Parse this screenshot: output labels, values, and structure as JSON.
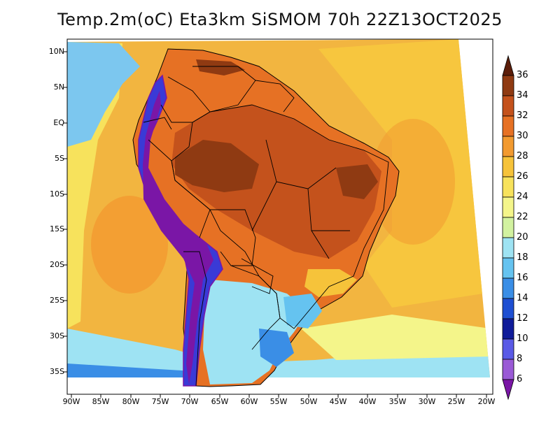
{
  "title": "Temp.2m(oC)  Eta3km  SiSMOM  70h  22Z13OCT2025",
  "map": {
    "lat_labels": [
      "10N",
      "5N",
      "EQ",
      "5S",
      "10S",
      "15S",
      "20S",
      "25S",
      "30S",
      "35S"
    ],
    "lon_labels": [
      "90W",
      "85W",
      "80W",
      "75W",
      "70W",
      "65W",
      "60W",
      "55W",
      "50W",
      "45W",
      "40W",
      "35W",
      "30W",
      "25W",
      "20W"
    ],
    "region": "South America"
  },
  "colorbar": {
    "labels": [
      "36",
      "34",
      "32",
      "30",
      "28",
      "26",
      "24",
      "22",
      "20",
      "18",
      "16",
      "14",
      "12",
      "10",
      "8",
      "6"
    ],
    "colors": [
      "#5c1e0a",
      "#8f3a12",
      "#c4521c",
      "#e67124",
      "#f29a30",
      "#f6c33a",
      "#f7e25c",
      "#f4f58a",
      "#d2f2a0",
      "#9ee3f3",
      "#65c3f0",
      "#3a8ee6",
      "#1e4fd2",
      "#101c9a",
      "#5a5ae6",
      "#9a5ad6",
      "#7a16a6"
    ]
  }
}
